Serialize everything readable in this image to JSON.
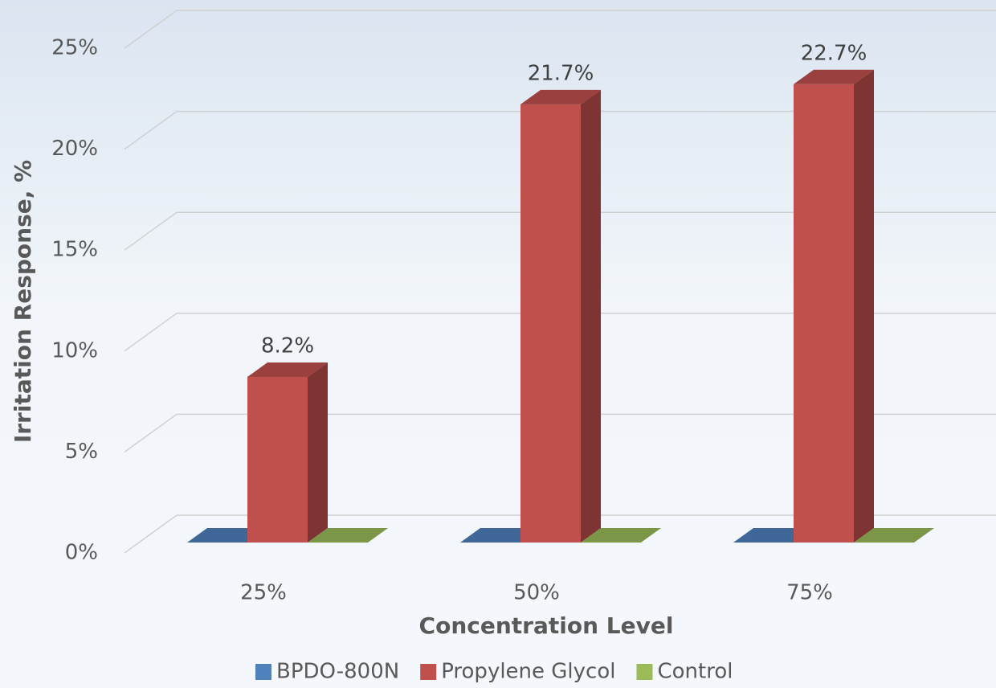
{
  "chart_data": {
    "type": "bar3d",
    "x_label": "Concentration Level",
    "y_label": "Irritation Response, %",
    "categories": [
      "25%",
      "50%",
      "75%"
    ],
    "series": [
      {
        "name": "BPDO-800N",
        "color": "#4f81bd",
        "values": [
          0,
          0,
          0
        ]
      },
      {
        "name": "Propylene Glycol",
        "color": "#c0504d",
        "values": [
          8.2,
          21.7,
          22.7
        ],
        "value_labels": [
          "8.2%",
          "21.7%",
          "22.7%"
        ]
      },
      {
        "name": "Control",
        "color": "#9bbb59",
        "values": [
          0,
          0,
          0
        ]
      }
    ],
    "ylim": [
      0,
      25
    ],
    "yticks": [
      {
        "value": 0,
        "label": "0%"
      },
      {
        "value": 5,
        "label": "5%"
      },
      {
        "value": 10,
        "label": "10%"
      },
      {
        "value": 15,
        "label": "15%"
      },
      {
        "value": 20,
        "label": "20%"
      },
      {
        "value": 25,
        "label": "25%"
      }
    ],
    "grid": true,
    "legend": "bottom"
  }
}
